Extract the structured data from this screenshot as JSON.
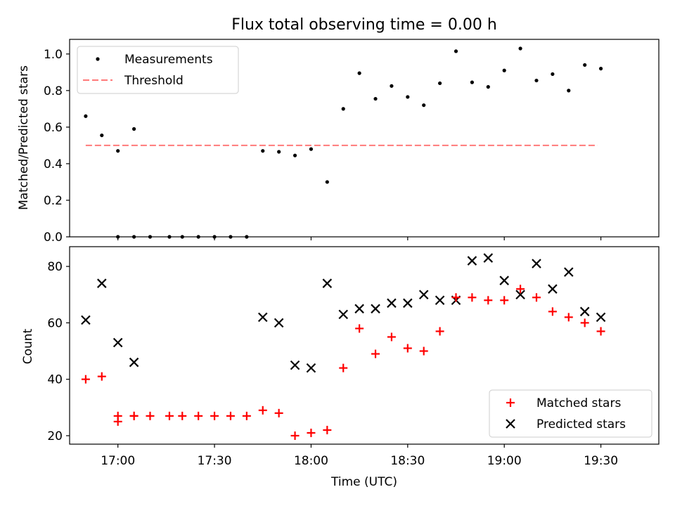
{
  "chart_data": [
    {
      "type": "scatter",
      "title": "Flux total observing time = 0.00 h",
      "xlabel": "",
      "ylabel": "Matched/Predicted stars",
      "xlim": [
        "16:45",
        "19:48"
      ],
      "ylim": [
        0,
        1.08
      ],
      "yticks": [
        "0.0",
        "0.2",
        "0.4",
        "0.6",
        "0.8",
        "1.0"
      ],
      "show_x_ticklabels": false,
      "legend_position": "upper-left",
      "series": [
        {
          "name": "Measurements",
          "marker": "dot",
          "color": "#000000",
          "points": [
            [
              "16:50",
              0.66
            ],
            [
              "16:55",
              0.555
            ],
            [
              "17:00",
              0.47
            ],
            [
              "17:05",
              0.59
            ],
            [
              "17:00",
              0.0
            ],
            [
              "17:05",
              0.0
            ],
            [
              "17:10",
              0.0
            ],
            [
              "17:16",
              0.0
            ],
            [
              "17:20",
              0.0
            ],
            [
              "17:25",
              0.0
            ],
            [
              "17:30",
              0.0
            ],
            [
              "17:35",
              0.0
            ],
            [
              "17:40",
              0.0
            ],
            [
              "17:45",
              0.47
            ],
            [
              "17:50",
              0.465
            ],
            [
              "17:55",
              0.445
            ],
            [
              "18:00",
              0.48
            ],
            [
              "18:05",
              0.3
            ],
            [
              "18:10",
              0.7
            ],
            [
              "18:15",
              0.895
            ],
            [
              "18:20",
              0.755
            ],
            [
              "18:25",
              0.825
            ],
            [
              "18:30",
              0.765
            ],
            [
              "18:35",
              0.72
            ],
            [
              "18:40",
              0.84
            ],
            [
              "18:45",
              1.015
            ],
            [
              "18:50",
              0.845
            ],
            [
              "18:55",
              0.82
            ],
            [
              "19:00",
              0.91
            ],
            [
              "19:05",
              1.03
            ],
            [
              "19:10",
              0.855
            ],
            [
              "19:15",
              0.89
            ],
            [
              "19:20",
              0.8
            ],
            [
              "19:25",
              0.94
            ],
            [
              "19:30",
              0.92
            ]
          ]
        },
        {
          "name": "Threshold",
          "marker": "dashed-line",
          "color": "#ff7a7a",
          "points": [
            [
              "16:50",
              0.5
            ],
            [
              "19:29",
              0.5
            ]
          ]
        }
      ]
    },
    {
      "type": "scatter",
      "title": "",
      "xlabel": "Time (UTC)",
      "ylabel": "Count",
      "xlim": [
        "16:45",
        "19:48"
      ],
      "ylim": [
        17,
        87
      ],
      "xticks": [
        "17:00",
        "17:30",
        "18:00",
        "18:30",
        "19:00",
        "19:30"
      ],
      "yticks": [
        "20",
        "40",
        "60",
        "80"
      ],
      "legend_position": "lower-right",
      "series": [
        {
          "name": "Matched stars",
          "marker": "plus",
          "color": "#ff0000",
          "points": [
            [
              "16:50",
              40
            ],
            [
              "16:55",
              41
            ],
            [
              "17:00",
              25
            ],
            [
              "17:05",
              27
            ],
            [
              "17:00",
              27
            ],
            [
              "17:05",
              27
            ],
            [
              "17:10",
              27
            ],
            [
              "17:16",
              27
            ],
            [
              "17:20",
              27
            ],
            [
              "17:25",
              27
            ],
            [
              "17:30",
              27
            ],
            [
              "17:35",
              27
            ],
            [
              "17:40",
              27
            ],
            [
              "17:45",
              29
            ],
            [
              "17:50",
              28
            ],
            [
              "17:55",
              20
            ],
            [
              "18:00",
              21
            ],
            [
              "18:05",
              22
            ],
            [
              "18:10",
              44
            ],
            [
              "18:15",
              58
            ],
            [
              "18:20",
              49
            ],
            [
              "18:25",
              55
            ],
            [
              "18:30",
              51
            ],
            [
              "18:35",
              50
            ],
            [
              "18:40",
              57
            ],
            [
              "18:45",
              69
            ],
            [
              "18:50",
              69
            ],
            [
              "18:55",
              68
            ],
            [
              "19:00",
              68
            ],
            [
              "19:05",
              72
            ],
            [
              "19:10",
              69
            ],
            [
              "19:15",
              64
            ],
            [
              "19:20",
              62
            ],
            [
              "19:25",
              60
            ],
            [
              "19:30",
              57
            ]
          ]
        },
        {
          "name": "Predicted stars",
          "marker": "x",
          "color": "#000000",
          "points": [
            [
              "16:50",
              61
            ],
            [
              "16:55",
              74
            ],
            [
              "17:00",
              53
            ],
            [
              "17:05",
              46
            ],
            [
              "17:45",
              62
            ],
            [
              "17:50",
              60
            ],
            [
              "17:55",
              45
            ],
            [
              "18:00",
              44
            ],
            [
              "18:05",
              74
            ],
            [
              "18:10",
              63
            ],
            [
              "18:15",
              65
            ],
            [
              "18:20",
              65
            ],
            [
              "18:25",
              67
            ],
            [
              "18:30",
              67
            ],
            [
              "18:35",
              70
            ],
            [
              "18:40",
              68
            ],
            [
              "18:45",
              68
            ],
            [
              "18:50",
              82
            ],
            [
              "18:55",
              83
            ],
            [
              "19:00",
              75
            ],
            [
              "19:05",
              70
            ],
            [
              "19:10",
              81
            ],
            [
              "19:15",
              72
            ],
            [
              "19:20",
              78
            ],
            [
              "19:25",
              64
            ],
            [
              "19:30",
              62
            ]
          ]
        }
      ]
    }
  ]
}
